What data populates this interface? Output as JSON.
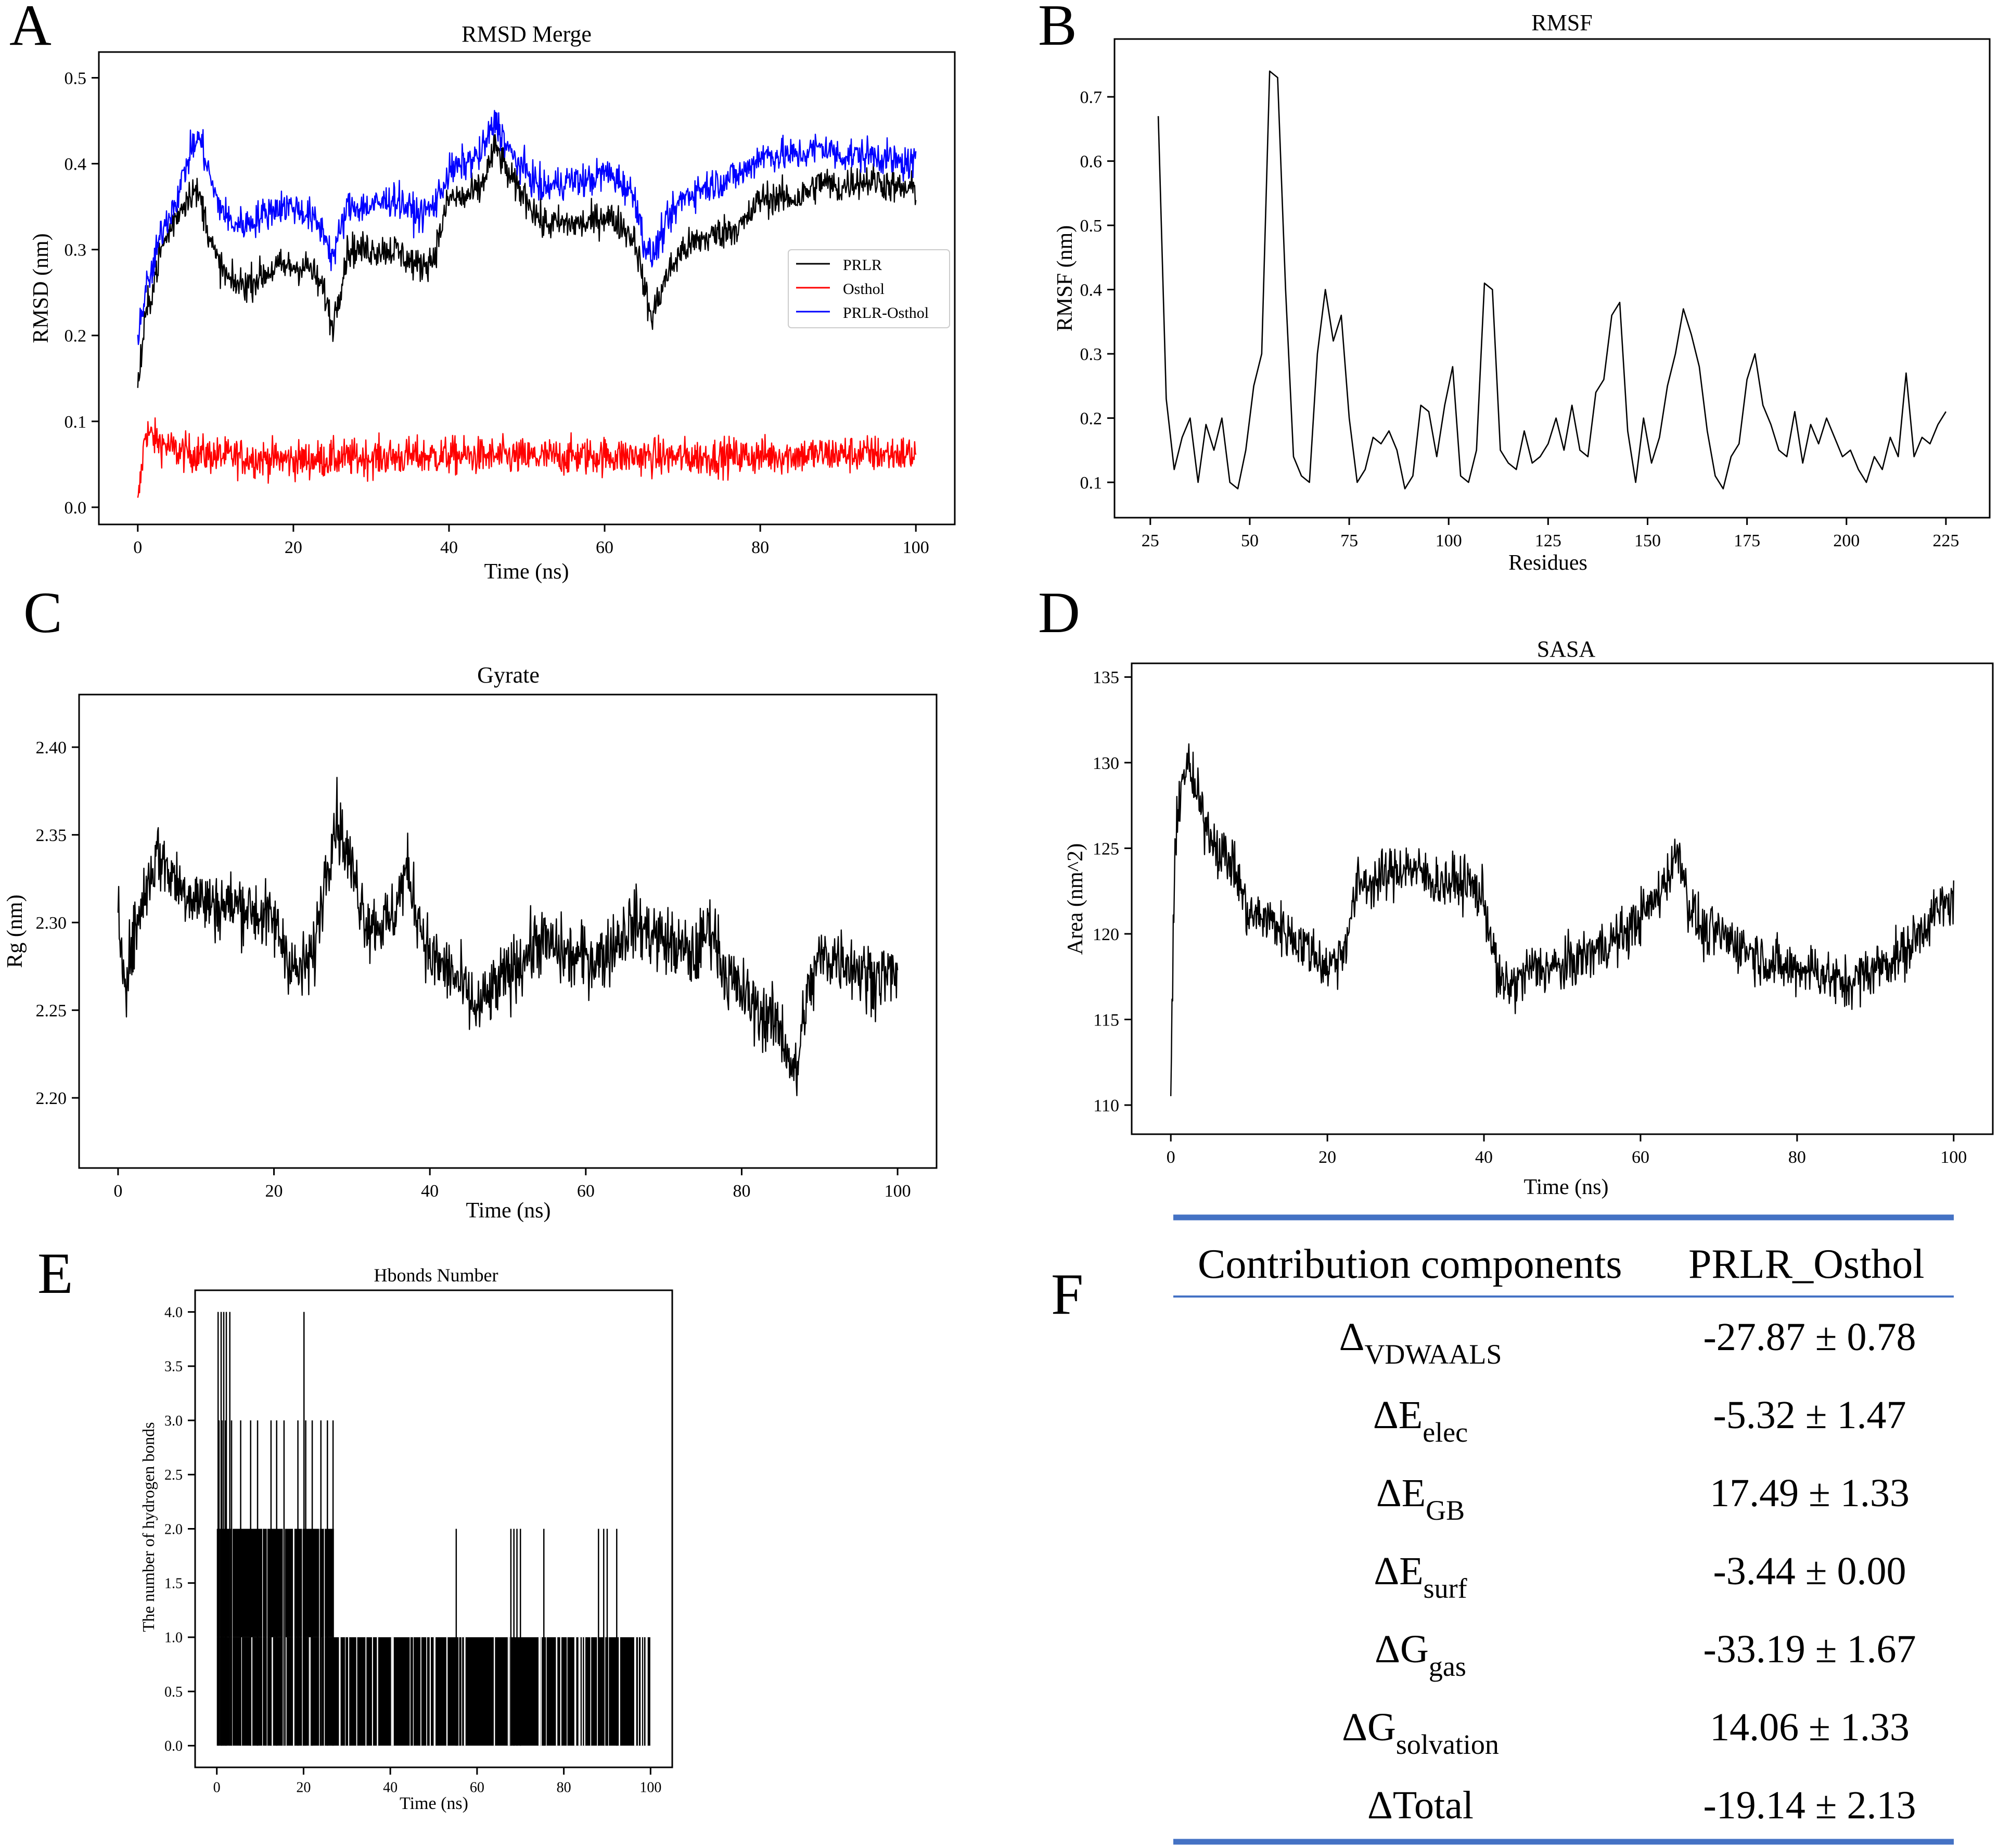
{
  "figure": {
    "panel_letters": [
      "A",
      "B",
      "C",
      "D",
      "E",
      "F"
    ]
  },
  "chart_data": [
    {
      "panel": "A",
      "type": "line",
      "title": "RMSD Merge",
      "xlabel": "Time (ns)",
      "ylabel": "RMSD (nm)",
      "xlim": [
        -5,
        105
      ],
      "ylim": [
        -0.02,
        0.53
      ],
      "xticks": [
        0,
        20,
        40,
        60,
        80,
        100
      ],
      "yticks": [
        0.0,
        0.1,
        0.2,
        0.3,
        0.4,
        0.5
      ],
      "legend_position": "center-right",
      "series": [
        {
          "name": "PRLR",
          "color": "#000000",
          "x": [
            0,
            1,
            2,
            3,
            5,
            7,
            8,
            10,
            12,
            14,
            16,
            18,
            20,
            22,
            24,
            25,
            27,
            30,
            33,
            36,
            38,
            40,
            42,
            44,
            46,
            48,
            50,
            52,
            55,
            58,
            60,
            62,
            64,
            65,
            66,
            68,
            70,
            72,
            75,
            78,
            80,
            82,
            85,
            88,
            90,
            92,
            95,
            98,
            100
          ],
          "values": [
            0.14,
            0.22,
            0.26,
            0.3,
            0.34,
            0.37,
            0.36,
            0.29,
            0.26,
            0.26,
            0.27,
            0.28,
            0.28,
            0.28,
            0.25,
            0.21,
            0.3,
            0.3,
            0.3,
            0.28,
            0.29,
            0.36,
            0.36,
            0.37,
            0.42,
            0.38,
            0.36,
            0.33,
            0.33,
            0.33,
            0.34,
            0.33,
            0.31,
            0.26,
            0.22,
            0.27,
            0.3,
            0.31,
            0.32,
            0.33,
            0.36,
            0.36,
            0.36,
            0.38,
            0.37,
            0.38,
            0.38,
            0.37,
            0.37
          ],
          "noise": 0.018
        },
        {
          "name": "Osthol",
          "color": "#ff0000",
          "x": [
            0,
            1,
            2,
            5,
            10,
            20,
            30,
            40,
            50,
            60,
            70,
            80,
            90,
            100
          ],
          "values": [
            0.0,
            0.09,
            0.08,
            0.065,
            0.06,
            0.055,
            0.058,
            0.06,
            0.058,
            0.06,
            0.058,
            0.06,
            0.062,
            0.062
          ],
          "noise": 0.02
        },
        {
          "name": "PRLR-Osthol",
          "color": "#0000ff",
          "x": [
            0,
            1,
            2,
            3,
            5,
            7,
            8,
            10,
            12,
            14,
            16,
            18,
            20,
            22,
            24,
            25,
            27,
            30,
            33,
            36,
            38,
            40,
            42,
            44,
            46,
            48,
            50,
            52,
            55,
            58,
            60,
            62,
            64,
            65,
            66,
            68,
            70,
            72,
            75,
            78,
            80,
            82,
            85,
            88,
            90,
            92,
            95,
            98,
            100
          ],
          "values": [
            0.2,
            0.25,
            0.28,
            0.32,
            0.36,
            0.42,
            0.43,
            0.36,
            0.33,
            0.33,
            0.34,
            0.35,
            0.35,
            0.34,
            0.32,
            0.29,
            0.35,
            0.35,
            0.36,
            0.34,
            0.35,
            0.39,
            0.4,
            0.41,
            0.45,
            0.41,
            0.39,
            0.37,
            0.38,
            0.38,
            0.39,
            0.38,
            0.36,
            0.31,
            0.29,
            0.33,
            0.36,
            0.37,
            0.38,
            0.39,
            0.41,
            0.41,
            0.41,
            0.42,
            0.41,
            0.41,
            0.41,
            0.4,
            0.4
          ],
          "noise": 0.018
        }
      ]
    },
    {
      "panel": "B",
      "type": "line",
      "title": "RMSF",
      "xlabel": "Residues",
      "ylabel": "RMSF (nm)",
      "xlim": [
        16,
        236
      ],
      "ylim": [
        0.045,
        0.79
      ],
      "xticks": [
        25,
        50,
        75,
        100,
        125,
        150,
        175,
        200,
        225
      ],
      "yticks": [
        0.1,
        0.2,
        0.3,
        0.4,
        0.5,
        0.6,
        0.7
      ],
      "series": [
        {
          "name": "RMSF",
          "color": "#000000",
          "x": [
            27,
            29,
            31,
            33,
            35,
            37,
            39,
            41,
            43,
            45,
            47,
            49,
            51,
            53,
            55,
            57,
            59,
            61,
            63,
            65,
            67,
            69,
            71,
            73,
            75,
            77,
            79,
            81,
            83,
            85,
            87,
            89,
            91,
            93,
            95,
            97,
            99,
            101,
            103,
            105,
            107,
            109,
            111,
            113,
            115,
            117,
            119,
            121,
            123,
            125,
            127,
            129,
            131,
            133,
            135,
            137,
            139,
            141,
            143,
            145,
            147,
            149,
            151,
            153,
            155,
            157,
            159,
            161,
            163,
            165,
            167,
            169,
            171,
            173,
            175,
            177,
            179,
            181,
            183,
            185,
            187,
            189,
            191,
            193,
            195,
            197,
            199,
            201,
            203,
            205,
            207,
            209,
            211,
            213,
            215,
            217,
            219,
            221,
            223,
            225
          ],
          "values": [
            0.67,
            0.23,
            0.12,
            0.17,
            0.2,
            0.1,
            0.19,
            0.15,
            0.2,
            0.1,
            0.09,
            0.15,
            0.25,
            0.3,
            0.74,
            0.73,
            0.4,
            0.14,
            0.11,
            0.1,
            0.3,
            0.4,
            0.32,
            0.36,
            0.2,
            0.1,
            0.12,
            0.17,
            0.16,
            0.18,
            0.15,
            0.09,
            0.11,
            0.22,
            0.21,
            0.14,
            0.22,
            0.28,
            0.11,
            0.1,
            0.15,
            0.41,
            0.4,
            0.15,
            0.13,
            0.12,
            0.18,
            0.13,
            0.14,
            0.16,
            0.2,
            0.15,
            0.22,
            0.15,
            0.14,
            0.24,
            0.26,
            0.36,
            0.38,
            0.18,
            0.1,
            0.2,
            0.13,
            0.17,
            0.25,
            0.3,
            0.37,
            0.33,
            0.28,
            0.18,
            0.11,
            0.09,
            0.14,
            0.16,
            0.26,
            0.3,
            0.22,
            0.19,
            0.15,
            0.14,
            0.21,
            0.13,
            0.19,
            0.16,
            0.2,
            0.17,
            0.14,
            0.15,
            0.12,
            0.1,
            0.14,
            0.12,
            0.17,
            0.14,
            0.27,
            0.14,
            0.17,
            0.16,
            0.19,
            0.21
          ]
        }
      ]
    },
    {
      "panel": "C",
      "type": "line",
      "title": "Gyrate",
      "xlabel": "Time (ns)",
      "ylabel": "Rg (nm)",
      "xlim": [
        -5,
        105
      ],
      "ylim": [
        2.16,
        2.43
      ],
      "xticks": [
        0,
        20,
        40,
        60,
        80,
        100
      ],
      "yticks": [
        2.2,
        2.25,
        2.3,
        2.35,
        2.4
      ],
      "series": [
        {
          "name": "Rg",
          "color": "#000000",
          "x": [
            0,
            1,
            3,
            5,
            8,
            12,
            16,
            20,
            23,
            25,
            27,
            28,
            30,
            32,
            35,
            37,
            40,
            43,
            46,
            50,
            54,
            58,
            62,
            66,
            70,
            74,
            76,
            78,
            80,
            82,
            85,
            87,
            88,
            90,
            93,
            96,
            100
          ],
          "values": [
            2.3,
            2.27,
            2.31,
            2.34,
            2.32,
            2.31,
            2.31,
            2.3,
            2.27,
            2.28,
            2.34,
            2.36,
            2.33,
            2.3,
            2.3,
            2.33,
            2.28,
            2.27,
            2.25,
            2.27,
            2.29,
            2.28,
            2.28,
            2.3,
            2.29,
            2.28,
            2.3,
            2.27,
            2.26,
            2.25,
            2.24,
            2.21,
            2.25,
            2.28,
            2.28,
            2.27,
            2.27
          ],
          "noise": 0.018
        }
      ]
    },
    {
      "panel": "D",
      "type": "line",
      "title": "SASA",
      "xlabel": "Time (ns)",
      "ylabel": "Area (nm^2)",
      "xlim": [
        -5,
        105
      ],
      "ylim": [
        108.3,
        135.8
      ],
      "xticks": [
        0,
        20,
        40,
        60,
        80,
        100
      ],
      "yticks": [
        110,
        115,
        120,
        125,
        130,
        135
      ],
      "series": [
        {
          "name": "SASA",
          "color": "#000000",
          "x": [
            0,
            0.5,
            1,
            2,
            4,
            6,
            8,
            10,
            12,
            15,
            18,
            20,
            22,
            24,
            26,
            30,
            34,
            38,
            40,
            42,
            44,
            46,
            50,
            54,
            58,
            62,
            65,
            66,
            68,
            70,
            74,
            78,
            82,
            86,
            90,
            94,
            97,
            100
          ],
          "values": [
            111,
            124,
            128,
            130,
            127,
            125,
            124,
            121,
            121,
            120,
            119,
            118,
            119,
            123,
            123,
            124,
            123,
            123,
            122,
            117,
            117,
            118,
            118,
            119,
            120,
            122,
            125,
            122,
            120,
            120,
            119,
            118,
            118,
            117,
            118,
            119,
            121,
            122
          ],
          "noise": 1.4
        }
      ]
    },
    {
      "panel": "E",
      "type": "bar",
      "title": "Hbonds Number",
      "xlabel": "Time (ns)",
      "ylabel": "The number of hydrogen bonds",
      "xlim": [
        -5,
        105
      ],
      "ylim": [
        -0.2,
        4.2
      ],
      "xticks": [
        0,
        20,
        40,
        60,
        80,
        100
      ],
      "yticks": [
        0.0,
        0.5,
        1.0,
        1.5,
        2.0,
        2.5,
        3.0,
        3.5,
        4.0
      ],
      "spikes_4": [
        0.3,
        1.0,
        1.6,
        2.2,
        3.0,
        20.1
      ],
      "spikes_3": [
        0.5,
        1.2,
        2.0,
        3.4,
        5.5,
        7.8,
        9.4,
        12.5,
        13.8,
        15.5,
        18.7,
        20.5,
        22.0,
        24.0,
        25.5,
        26.8
      ],
      "spikes_2": [
        55.2,
        67.8,
        68.5,
        69.2,
        70.0,
        75.4,
        88.0,
        89.2,
        90.0,
        92.2
      ],
      "solid_2_until": 27,
      "solid_1_until": 100
    },
    {
      "panel": "F",
      "type": "table",
      "headers": [
        "Contribution components",
        "PRLR_Osthol"
      ],
      "rows": [
        {
          "base": "ΔVDWAALS",
          "values": "-27.87 ± 0.78"
        },
        {
          "base": "ΔEelec",
          "values": "-5.32 ± 1.47"
        },
        {
          "base": "ΔEGB",
          "values": "17.49 ± 1.33"
        },
        {
          "base": "ΔEsurf",
          "values": "-3.44 ± 0.00"
        },
        {
          "base": "ΔGgas",
          "values": "-33.19 ± 1.67"
        },
        {
          "base": "ΔGsolvation",
          "values": "14.06 ± 1.33"
        },
        {
          "base": "ΔTotal",
          "values": "-19.14 ± 2.13"
        }
      ],
      "row_symbol": [
        "Δ",
        "ΔE",
        "ΔE",
        "ΔE",
        "ΔG",
        "ΔG",
        "ΔTotal"
      ],
      "row_subscript": [
        "VDWAALS",
        "elec",
        "GB",
        "surf",
        "gas",
        "solvation",
        ""
      ],
      "rule_color": "#4472c4"
    }
  ]
}
